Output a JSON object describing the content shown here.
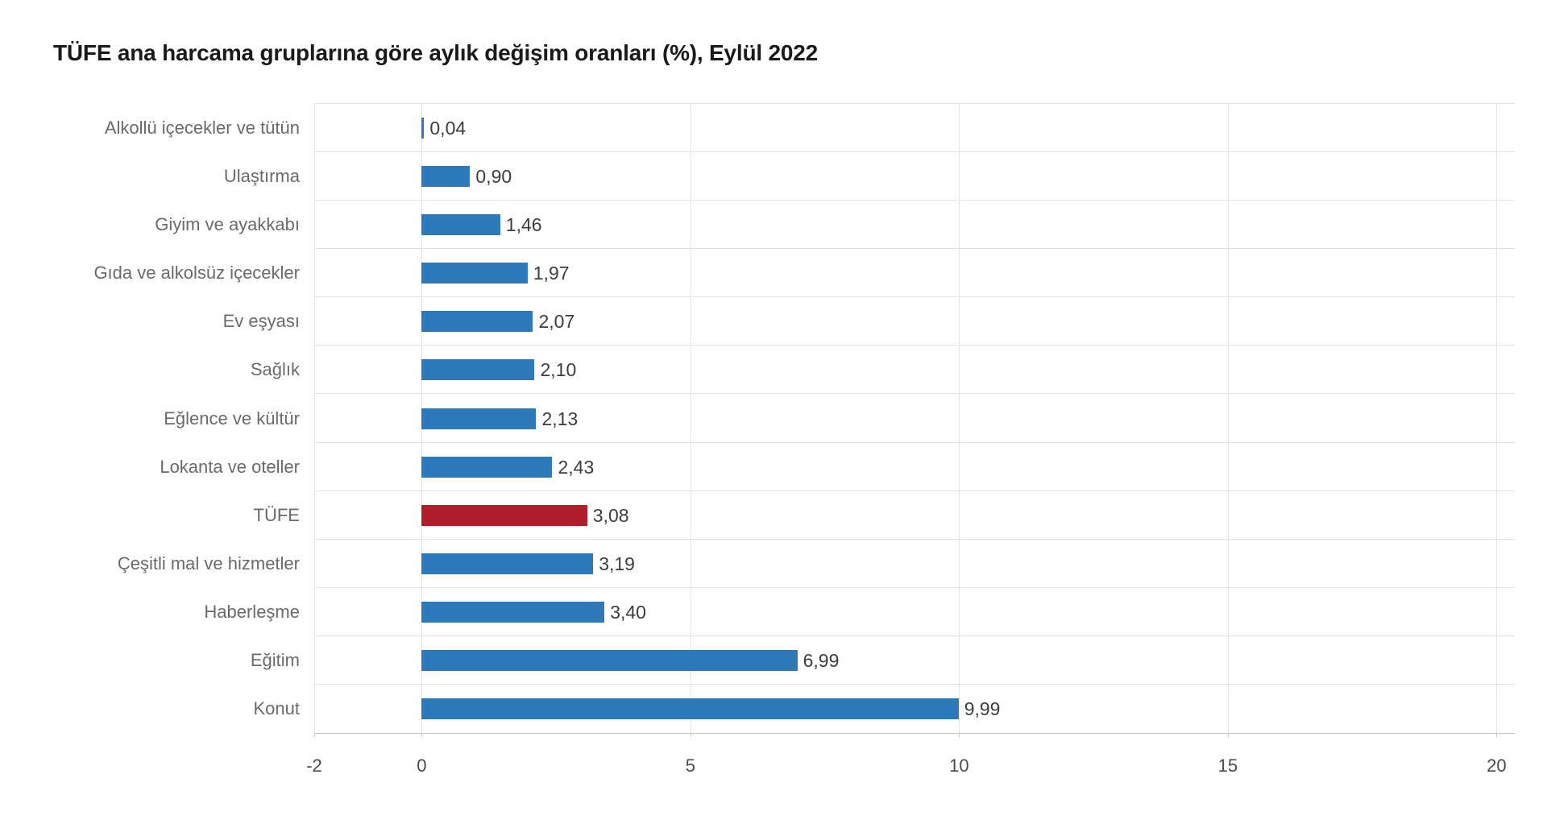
{
  "chart_data": {
    "type": "bar",
    "orientation": "horizontal",
    "title": "TÜFE ana harcama gruplarına göre aylık değişim oranları (%), Eylül 2022",
    "categories": [
      "Alkollü içecekler ve tütün",
      "Ulaştırma",
      "Giyim ve ayakkabı",
      "Gıda ve alkolsüz içecekler",
      "Ev eşyası",
      "Sağlık",
      "Eğlence ve kültür",
      "Lokanta ve oteller",
      "TÜFE",
      "Çeşitli mal ve hizmetler",
      "Haberleşme",
      "Eğitim",
      "Konut"
    ],
    "values": [
      0.04,
      0.9,
      1.46,
      1.97,
      2.07,
      2.1,
      2.13,
      2.43,
      3.08,
      3.19,
      3.4,
      6.99,
      9.99
    ],
    "value_labels": [
      "0,04",
      "0,90",
      "1,46",
      "1,97",
      "2,07",
      "2,10",
      "2,13",
      "2,43",
      "3,08",
      "3,19",
      "3,40",
      "6,99",
      "9,99"
    ],
    "highlight_index": 8,
    "highlight_category": "TÜFE",
    "xlabel": "",
    "ylabel": "",
    "xlim": [
      -2,
      20
    ],
    "xticks": [
      -2,
      0,
      5,
      10,
      15,
      20
    ],
    "xtick_labels": [
      "-2",
      "0",
      "5",
      "10",
      "15",
      "20"
    ],
    "grid": true,
    "legend": false,
    "colors": {
      "bar": "#2e79b9",
      "highlight": "#b01e2b",
      "gridline": "#e4e4e4",
      "axis_line": "#c6c6c6",
      "category_text": "#6a6a6a",
      "value_text": "#3d3d3d",
      "tick_text": "#4a4a4a",
      "title_text": "#1a1a1a"
    }
  }
}
